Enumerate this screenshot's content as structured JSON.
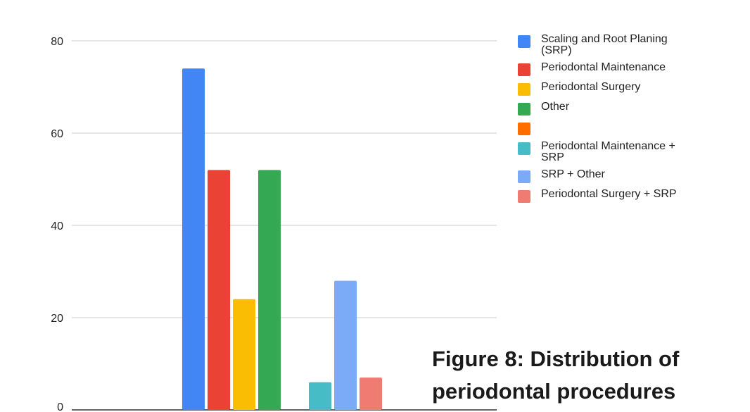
{
  "chart_data": {
    "type": "bar",
    "ylim": [
      0,
      80
    ],
    "yticks": [
      0,
      20,
      40,
      60,
      80
    ],
    "grid": true,
    "legend_position": "right",
    "groups": [
      {
        "series_indices": [
          0,
          1,
          2,
          3
        ]
      },
      {
        "series_indices": [
          5,
          6,
          7
        ]
      }
    ],
    "series": [
      {
        "name": "Scaling and Root Planing (SRP)",
        "color": "#4285F4",
        "value": 74
      },
      {
        "name": "Periodontal Maintenance",
        "color": "#EA4335",
        "value": 52
      },
      {
        "name": "Periodontal Surgery",
        "color": "#FBBC04",
        "value": 24
      },
      {
        "name": "Other",
        "color": "#34A853",
        "value": 52
      },
      {
        "name": "",
        "color": "#FF6D01",
        "value": null
      },
      {
        "name": "Periodontal Maintenance + SRP",
        "color": "#46BDC6",
        "value": 6
      },
      {
        "name": "SRP + Other",
        "color": "#7BAAF7",
        "value": 28
      },
      {
        "name": "Periodontal Surgery + SRP",
        "color": "#F07B72",
        "value": 7
      }
    ]
  },
  "caption": {
    "line1": "Figure 8: Distribution of",
    "line2": "periodontal procedures"
  }
}
